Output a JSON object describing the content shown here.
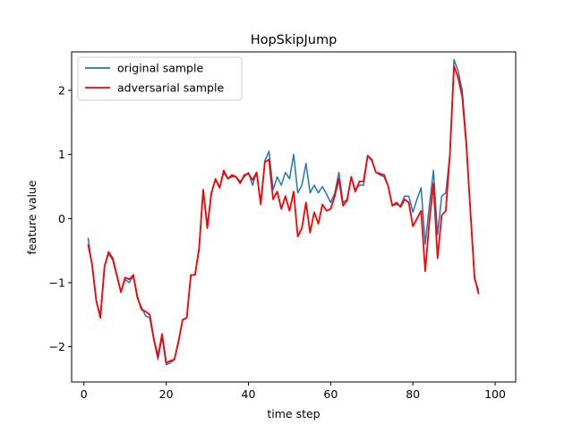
{
  "chart_data": {
    "type": "line",
    "title": "HopSkipJump",
    "xlabel": "time step",
    "ylabel": "feature value",
    "xlim": [
      -3,
      105
    ],
    "ylim": [
      -2.55,
      2.6
    ],
    "xticks": [
      0,
      20,
      40,
      60,
      80,
      100
    ],
    "xtick_labels": [
      "0",
      "20",
      "40",
      "60",
      "80",
      "100"
    ],
    "yticks": [
      -2,
      -1,
      0,
      1,
      2
    ],
    "ytick_labels": [
      "−2",
      "−1",
      "0",
      "1",
      "2"
    ],
    "grid": false,
    "legend_position": "upper left",
    "x": [
      1,
      2,
      3,
      4,
      5,
      6,
      7,
      8,
      9,
      10,
      11,
      12,
      13,
      14,
      15,
      16,
      17,
      18,
      19,
      20,
      21,
      22,
      23,
      24,
      25,
      26,
      27,
      28,
      29,
      30,
      31,
      32,
      33,
      34,
      35,
      36,
      37,
      38,
      39,
      40,
      41,
      42,
      43,
      44,
      45,
      46,
      47,
      48,
      49,
      50,
      51,
      52,
      53,
      54,
      55,
      56,
      57,
      58,
      59,
      60,
      61,
      62,
      63,
      64,
      65,
      66,
      67,
      68,
      69,
      70,
      71,
      72,
      73,
      74,
      75,
      76,
      77,
      78,
      79,
      80,
      81,
      82,
      83,
      84,
      85,
      86,
      87,
      88,
      89,
      90,
      91,
      92,
      93,
      94,
      95,
      96
    ],
    "series": [
      {
        "name": "original sample",
        "color": "#1f77b4",
        "values": [
          -0.3,
          -0.75,
          -1.3,
          -1.5,
          -0.75,
          -0.55,
          -0.65,
          -0.9,
          -1.15,
          -0.95,
          -1.0,
          -0.9,
          -1.25,
          -1.38,
          -1.52,
          -1.55,
          -1.9,
          -2.2,
          -1.85,
          -2.28,
          -2.25,
          -2.2,
          -1.9,
          -1.58,
          -1.55,
          -0.88,
          -0.88,
          -0.45,
          0.45,
          -0.1,
          0.4,
          0.6,
          0.48,
          0.72,
          0.62,
          0.65,
          0.65,
          0.58,
          0.65,
          0.72,
          0.52,
          0.72,
          0.25,
          0.9,
          1.05,
          0.45,
          0.65,
          0.52,
          0.72,
          0.62,
          1.0,
          0.4,
          0.52,
          0.86,
          0.4,
          0.52,
          0.4,
          0.5,
          0.38,
          0.25,
          0.4,
          0.72,
          0.25,
          0.3,
          0.65,
          0.45,
          0.52,
          0.52,
          0.98,
          0.9,
          0.72,
          0.68,
          0.65,
          0.5,
          0.2,
          0.22,
          0.2,
          0.35,
          0.35,
          0.1,
          0.3,
          0.48,
          -0.4,
          0.2,
          0.75,
          -0.25,
          0.35,
          0.4,
          1.0,
          2.48,
          2.3,
          2.0,
          1.2,
          0.1,
          -0.95,
          -1.12
        ]
      },
      {
        "name": "adversarial sample",
        "color": "#ff0000",
        "values": [
          -0.4,
          -0.72,
          -1.28,
          -1.55,
          -0.75,
          -0.52,
          -0.62,
          -0.88,
          -1.15,
          -0.92,
          -0.95,
          -0.88,
          -1.22,
          -1.42,
          -1.45,
          -1.5,
          -1.88,
          -2.15,
          -1.8,
          -2.25,
          -2.22,
          -2.2,
          -1.92,
          -1.58,
          -1.55,
          -0.88,
          -0.88,
          -0.48,
          0.45,
          -0.15,
          0.4,
          0.62,
          0.48,
          0.75,
          0.62,
          0.68,
          0.65,
          0.55,
          0.68,
          0.7,
          0.6,
          0.72,
          0.22,
          0.88,
          0.92,
          0.3,
          0.42,
          0.15,
          0.35,
          0.12,
          0.42,
          -0.28,
          -0.15,
          0.25,
          -0.22,
          0.1,
          -0.08,
          0.22,
          0.12,
          0.15,
          0.35,
          0.62,
          0.2,
          0.28,
          0.65,
          0.42,
          0.58,
          0.58,
          0.98,
          0.92,
          0.72,
          0.7,
          0.68,
          0.5,
          0.2,
          0.25,
          0.18,
          0.3,
          0.25,
          -0.12,
          0.0,
          0.12,
          -0.82,
          -0.05,
          0.55,
          -0.62,
          0.05,
          0.12,
          1.0,
          2.38,
          2.2,
          1.9,
          1.15,
          0.1,
          -0.92,
          -1.18
        ]
      }
    ]
  }
}
